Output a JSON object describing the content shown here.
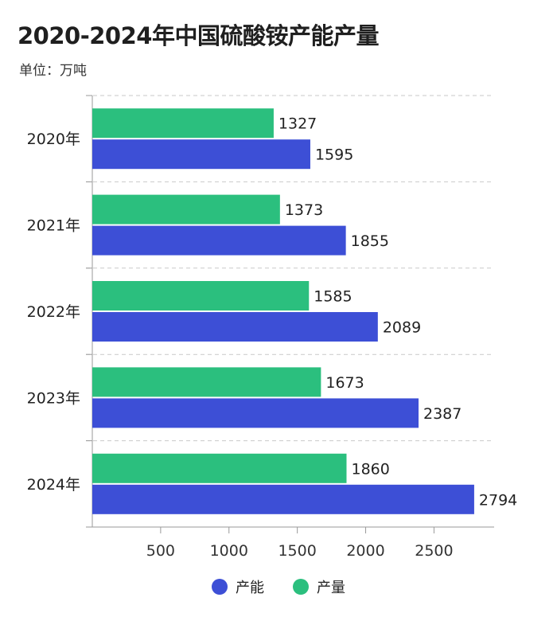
{
  "chart_data": {
    "type": "bar",
    "orientation": "horizontal",
    "title": "2020-2024年中国硫酸铵产能产量",
    "subtitle": "单位：万吨",
    "categories": [
      "2020年",
      "2021年",
      "2022年",
      "2023年",
      "2024年"
    ],
    "series": [
      {
        "name": "产量",
        "color": "#2bbf7e",
        "values": [
          1327,
          1373,
          1585,
          1673,
          1860
        ]
      },
      {
        "name": "产能",
        "color": "#3d4fd6",
        "values": [
          1595,
          1855,
          2089,
          2387,
          2794
        ]
      }
    ],
    "xlim": [
      0,
      2940
    ],
    "xticks": [
      500,
      1000,
      1500,
      2000,
      2500
    ],
    "grid": true,
    "legend_position": "bottom",
    "legend": [
      {
        "name": "产能",
        "color": "#3d4fd6"
      },
      {
        "name": "产量",
        "color": "#2bbf7e"
      }
    ]
  }
}
